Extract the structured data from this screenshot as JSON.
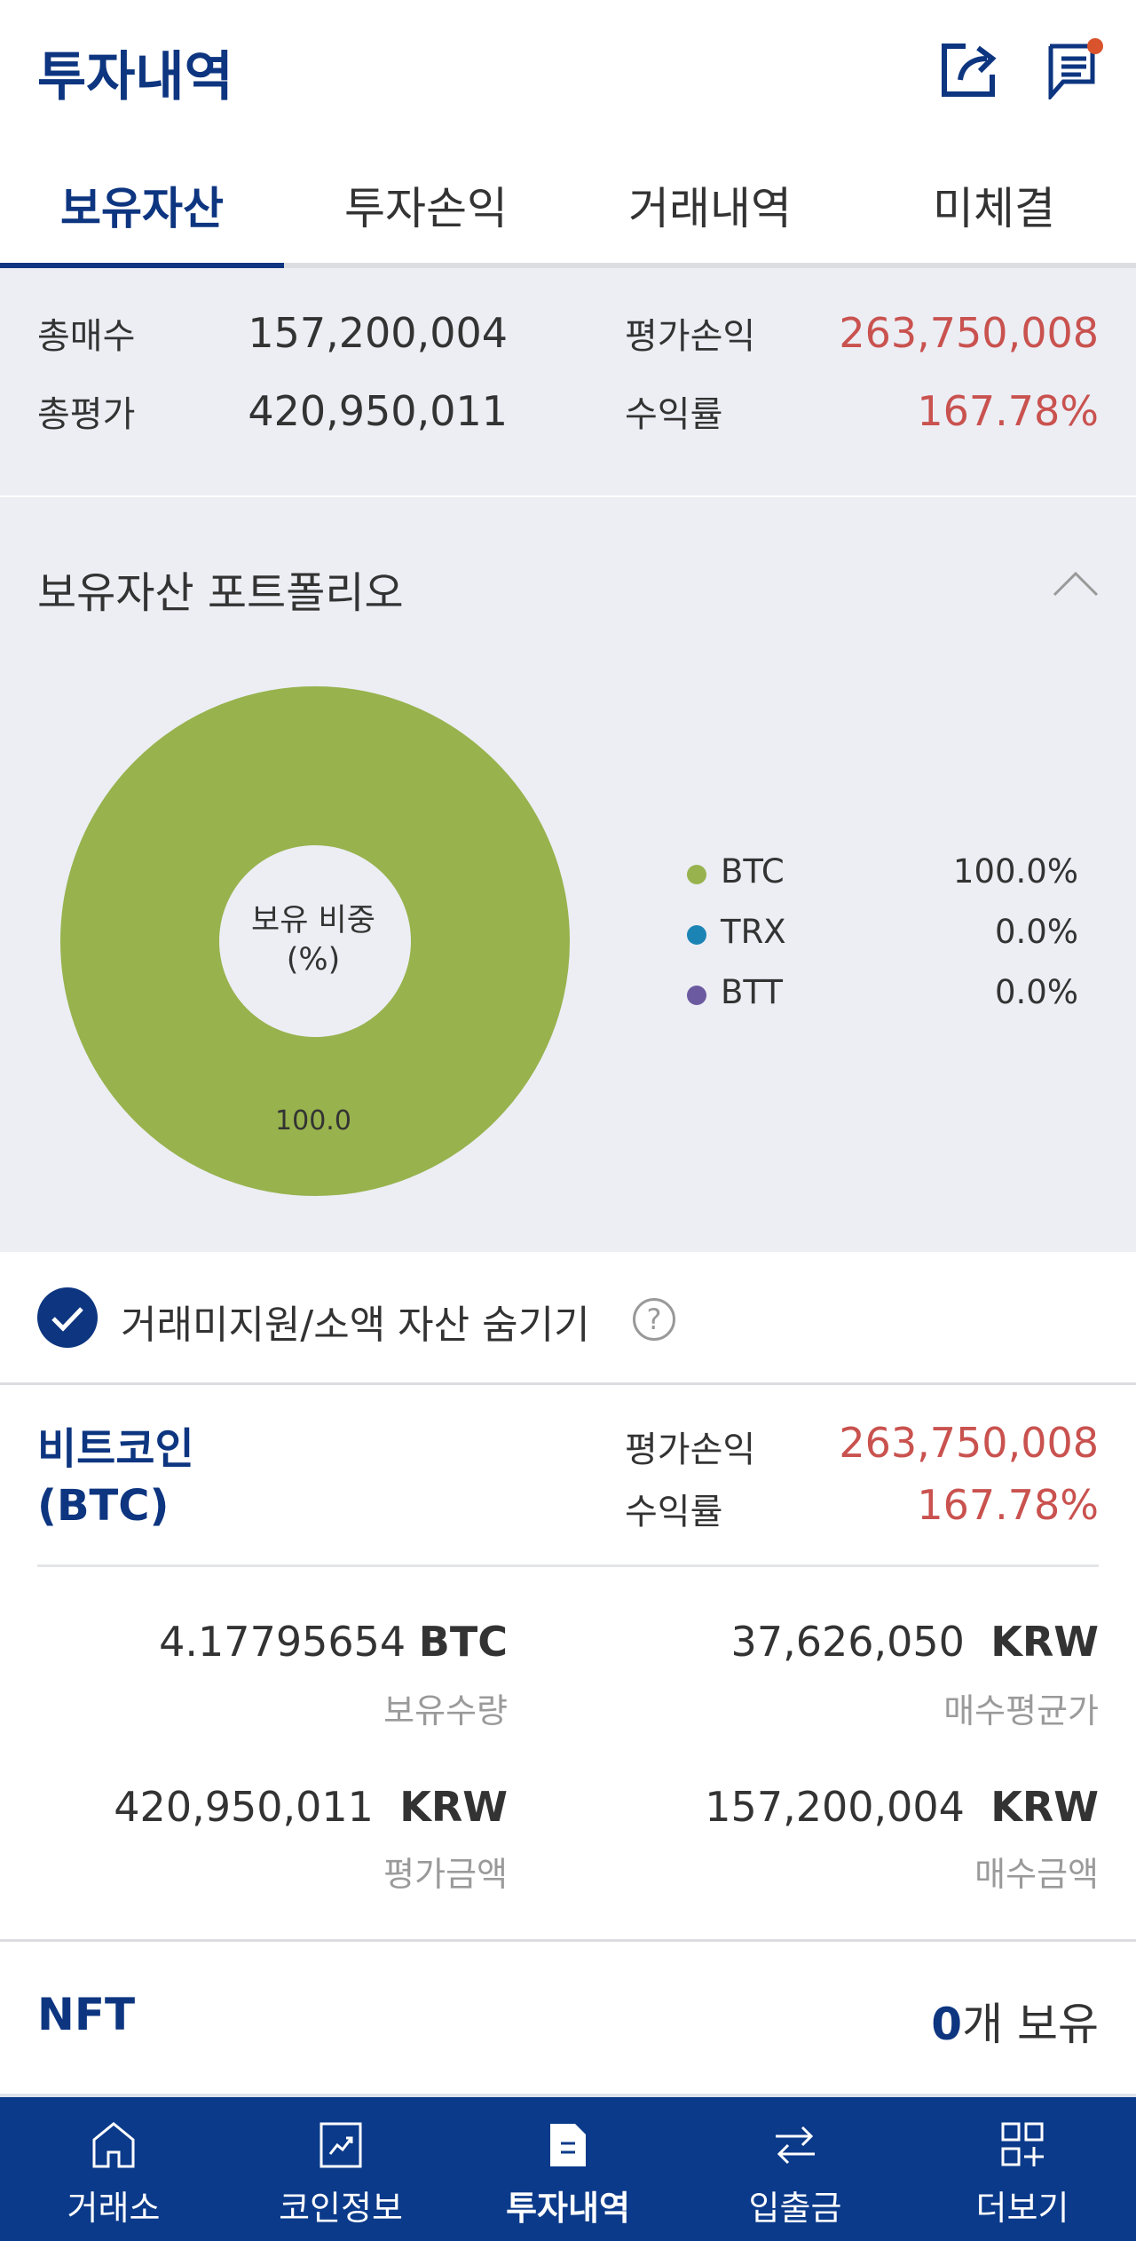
{
  "header": {
    "title": "투자내역",
    "icons": [
      "share-icon",
      "notice-icon"
    ],
    "notification_dot_color": "#d9532c"
  },
  "tabs": [
    {
      "label": "보유자산",
      "active": true
    },
    {
      "label": "투자손익"
    },
    {
      "label": "거래내역"
    },
    {
      "label": "미체결"
    }
  ],
  "summary": {
    "total_buy_label": "총매수",
    "total_buy": "157,200,004",
    "total_eval_label": "총평가",
    "total_eval": "420,950,011",
    "pnl_label": "평가손익",
    "pnl": "263,750,008",
    "rate_label": "수익률",
    "rate": "167.78%"
  },
  "portfolio": {
    "title": "보유자산 포트폴리오",
    "center_label_1": "보유 비중",
    "center_label_2": "(%)",
    "slice_label": "100.0",
    "chart_data": {
      "type": "pie",
      "categories": [
        "BTC",
        "TRX",
        "BTT"
      ],
      "values": [
        100.0,
        0.0,
        0.0
      ],
      "colors": [
        "#98b24d",
        "#1c84b5",
        "#6c5aa0"
      ],
      "value_labels": [
        "100.0%",
        "0.0%",
        "0.0%"
      ]
    }
  },
  "filter": {
    "label": "거래미지원/소액 자산 숨기기",
    "checked": true,
    "help": "?"
  },
  "holding": {
    "name": "비트코인",
    "symbol": "(BTC)",
    "pnl_label": "평가손익",
    "pnl": "263,750,008",
    "rate_label": "수익률",
    "rate": "167.78%",
    "qty": "4.17795654",
    "qty_unit": "BTC",
    "qty_label": "보유수량",
    "avg": "37,626,050",
    "avg_unit": "KRW",
    "avg_label": "매수평균가",
    "eval": "420,950,011",
    "eval_unit": "KRW",
    "eval_label": "평가금액",
    "buy": "157,200,004",
    "buy_unit": "KRW",
    "buy_label": "매수금액"
  },
  "nft": {
    "label": "NFT",
    "count": "0",
    "suffix": "개 보유"
  },
  "bottom_nav": [
    {
      "label": "거래소"
    },
    {
      "label": "코인정보"
    },
    {
      "label": "투자내역",
      "active": true
    },
    {
      "label": "입출금"
    },
    {
      "label": "더보기"
    }
  ]
}
